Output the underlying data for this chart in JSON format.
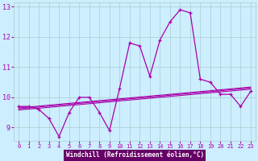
{
  "xlabel": "Windchill (Refroidissement éolien,°C)",
  "hours": [
    0,
    1,
    2,
    3,
    4,
    5,
    6,
    7,
    8,
    9,
    10,
    11,
    12,
    13,
    14,
    15,
    16,
    17,
    18,
    19,
    20,
    21,
    22,
    23
  ],
  "main_line": [
    9.7,
    9.7,
    9.6,
    9.3,
    8.7,
    9.5,
    10.0,
    10.0,
    9.5,
    8.9,
    10.3,
    11.8,
    11.7,
    10.7,
    11.9,
    12.5,
    12.9,
    12.8,
    10.6,
    10.5,
    10.1,
    10.1,
    9.7,
    10.2
  ],
  "trend1": [
    9.65,
    9.68,
    9.71,
    9.74,
    9.77,
    9.8,
    9.83,
    9.86,
    9.89,
    9.92,
    9.95,
    9.98,
    10.01,
    10.04,
    10.07,
    10.1,
    10.13,
    10.16,
    10.19,
    10.22,
    10.25,
    10.28,
    10.31,
    10.34
  ],
  "trend2": [
    9.62,
    9.65,
    9.68,
    9.71,
    9.74,
    9.77,
    9.8,
    9.83,
    9.86,
    9.89,
    9.92,
    9.95,
    9.98,
    10.01,
    10.04,
    10.07,
    10.1,
    10.13,
    10.16,
    10.19,
    10.22,
    10.25,
    10.28,
    10.31
  ],
  "trend3": [
    9.58,
    9.61,
    9.64,
    9.67,
    9.7,
    9.73,
    9.76,
    9.79,
    9.82,
    9.85,
    9.88,
    9.91,
    9.94,
    9.97,
    10.0,
    10.03,
    10.06,
    10.09,
    10.12,
    10.15,
    10.18,
    10.21,
    10.24,
    10.27
  ],
  "line_color": "#aa00aa",
  "bg_color": "#cceeff",
  "grid_color": "#aacccc",
  "label_bg": "#660066",
  "tick_color": "#aa00aa",
  "ylim": [
    8.55,
    13.15
  ],
  "yticks": [
    9,
    10,
    11,
    12,
    13
  ]
}
